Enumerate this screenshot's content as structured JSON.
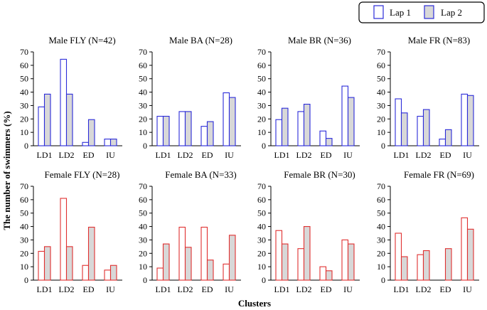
{
  "legend": [
    {
      "label": "Lap 1",
      "fill": "#ffffff"
    },
    {
      "label": "Lap 2",
      "fill": "#d8d8d8"
    }
  ],
  "colors": {
    "male": "#2b2bd9",
    "female": "#e03030",
    "axis": "#000000"
  },
  "xlabel": "Clusters",
  "ylabel": "The number of swimmers (%)",
  "chart_data": [
    {
      "type": "bar",
      "title": "Male FLY (N=42)",
      "categories": [
        "LD1",
        "LD2",
        "ED",
        "IU"
      ],
      "ylim": [
        0,
        70
      ],
      "yticks": [
        0,
        10,
        20,
        30,
        40,
        50,
        60,
        70
      ],
      "series": [
        {
          "name": "Lap 1",
          "values": [
            29,
            64.5,
            2.5,
            5
          ]
        },
        {
          "name": "Lap 2",
          "values": [
            38.5,
            38.5,
            19.5,
            5
          ]
        }
      ]
    },
    {
      "type": "bar",
      "title": "Male BA (N=28)",
      "categories": [
        "LD1",
        "LD2",
        "ED",
        "IU"
      ],
      "ylim": [
        0,
        70
      ],
      "yticks": [
        0,
        10,
        20,
        30,
        40,
        50,
        60,
        70
      ],
      "series": [
        {
          "name": "Lap 1",
          "values": [
            22,
            25.5,
            14.5,
            39.5
          ]
        },
        {
          "name": "Lap 2",
          "values": [
            22,
            25.5,
            18,
            36
          ]
        }
      ]
    },
    {
      "type": "bar",
      "title": "Male BR (N=36)",
      "categories": [
        "LD1",
        "LD2",
        "ED",
        "IU"
      ],
      "ylim": [
        0,
        70
      ],
      "yticks": [
        0,
        10,
        20,
        30,
        40,
        50,
        60,
        70
      ],
      "series": [
        {
          "name": "Lap 1",
          "values": [
            19.5,
            25.5,
            11,
            44.5
          ]
        },
        {
          "name": "Lap 2",
          "values": [
            28,
            31,
            5.5,
            36
          ]
        }
      ]
    },
    {
      "type": "bar",
      "title": "Male FR (N=83)",
      "categories": [
        "LD1",
        "LD2",
        "ED",
        "IU"
      ],
      "ylim": [
        0,
        70
      ],
      "yticks": [
        0,
        10,
        20,
        30,
        40,
        50,
        60,
        70
      ],
      "series": [
        {
          "name": "Lap 1",
          "values": [
            35,
            22,
            5,
            38.5
          ]
        },
        {
          "name": "Lap 2",
          "values": [
            24.5,
            27,
            12,
            37.5
          ]
        }
      ]
    },
    {
      "type": "bar",
      "title": "Female FLY (N=28)",
      "categories": [
        "LD1",
        "LD2",
        "ED",
        "IU"
      ],
      "ylim": [
        0,
        70
      ],
      "yticks": [
        0,
        10,
        20,
        30,
        40,
        50,
        60,
        70
      ],
      "series": [
        {
          "name": "Lap 1",
          "values": [
            21.5,
            61,
            11,
            7.5
          ]
        },
        {
          "name": "Lap 2",
          "values": [
            25,
            25,
            39.5,
            11
          ]
        }
      ]
    },
    {
      "type": "bar",
      "title": "Female BA (N=33)",
      "categories": [
        "LD1",
        "LD2",
        "ED",
        "IU"
      ],
      "ylim": [
        0,
        70
      ],
      "yticks": [
        0,
        10,
        20,
        30,
        40,
        50,
        60,
        70
      ],
      "series": [
        {
          "name": "Lap 1",
          "values": [
            9,
            39.5,
            39.5,
            12
          ]
        },
        {
          "name": "Lap 2",
          "values": [
            27,
            24.5,
            15,
            33.5
          ]
        }
      ]
    },
    {
      "type": "bar",
      "title": "Female BR (N=30)",
      "categories": [
        "LD1",
        "LD2",
        "ED",
        "IU"
      ],
      "ylim": [
        0,
        70
      ],
      "yticks": [
        0,
        10,
        20,
        30,
        40,
        50,
        60,
        70
      ],
      "series": [
        {
          "name": "Lap 1",
          "values": [
            37,
            23.5,
            10,
            30
          ]
        },
        {
          "name": "Lap 2",
          "values": [
            27,
            40,
            7,
            27
          ]
        }
      ]
    },
    {
      "type": "bar",
      "title": "Female FR (N=69)",
      "categories": [
        "LD1",
        "LD2",
        "ED",
        "IU"
      ],
      "ylim": [
        0,
        70
      ],
      "yticks": [
        0,
        10,
        20,
        30,
        40,
        50,
        60,
        70
      ],
      "series": [
        {
          "name": "Lap 1",
          "values": [
            35,
            19,
            0,
            46.5
          ]
        },
        {
          "name": "Lap 2",
          "values": [
            17.5,
            22,
            23.5,
            38
          ]
        }
      ]
    }
  ]
}
